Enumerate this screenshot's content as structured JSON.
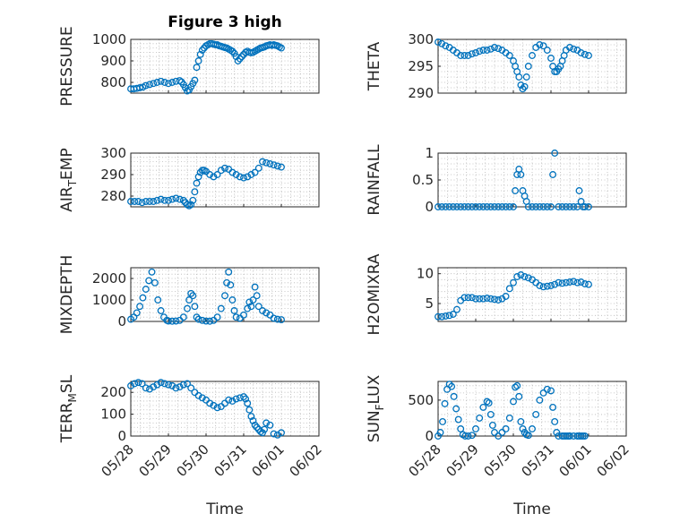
{
  "chart_data": [
    {
      "type": "scatter",
      "title": "Figure 3 high",
      "ylabel": "PRESSURE",
      "ylabel_sub": "",
      "ylabel_tail": "",
      "ylim": [
        750,
        1000
      ],
      "yticks": [
        "800",
        "900",
        "1000"
      ],
      "ytick_values": [
        800,
        900,
        1000
      ],
      "x": [
        0,
        0.08,
        0.16,
        0.24,
        0.32,
        0.4,
        0.5,
        0.6,
        0.7,
        0.8,
        0.9,
        1.0,
        1.1,
        1.2,
        1.3,
        1.35,
        1.4,
        1.45,
        1.5,
        1.55,
        1.6,
        1.65,
        1.7,
        1.75,
        1.8,
        1.85,
        1.9,
        1.95,
        2.0,
        2.05,
        2.1,
        2.15,
        2.2,
        2.25,
        2.3,
        2.35,
        2.4,
        2.45,
        2.5,
        2.55,
        2.6,
        2.65,
        2.7,
        2.75,
        2.8,
        2.85,
        2.9,
        2.95,
        3.0,
        3.05,
        3.1,
        3.15,
        3.2,
        3.25,
        3.3,
        3.35,
        3.4,
        3.45,
        3.5,
        3.55,
        3.6,
        3.65,
        3.7,
        3.75,
        3.8,
        3.85,
        3.9,
        3.95,
        4.0
      ],
      "y": [
        770,
        770,
        772,
        775,
        778,
        785,
        790,
        795,
        800,
        805,
        800,
        795,
        800,
        805,
        808,
        802,
        790,
        775,
        760,
        765,
        780,
        795,
        810,
        870,
        900,
        930,
        950,
        960,
        970,
        975,
        980,
        980,
        978,
        975,
        975,
        970,
        968,
        965,
        962,
        960,
        955,
        950,
        945,
        935,
        920,
        900,
        910,
        920,
        930,
        940,
        945,
        940,
        938,
        940,
        945,
        950,
        955,
        960,
        962,
        965,
        970,
        972,
        975,
        972,
        975,
        972,
        970,
        965,
        960
      ]
    },
    {
      "type": "scatter",
      "title": "",
      "ylabel": "THETA",
      "ylabel_sub": "",
      "ylabel_tail": "",
      "ylim": [
        290,
        300
      ],
      "yticks": [
        "290",
        "295",
        "300"
      ],
      "ytick_values": [
        290,
        295,
        300
      ],
      "x": [
        0,
        0.1,
        0.2,
        0.3,
        0.4,
        0.5,
        0.6,
        0.7,
        0.8,
        0.9,
        1.0,
        1.1,
        1.2,
        1.3,
        1.4,
        1.5,
        1.6,
        1.7,
        1.8,
        1.9,
        2.0,
        2.05,
        2.1,
        2.15,
        2.2,
        2.25,
        2.3,
        2.35,
        2.4,
        2.5,
        2.6,
        2.7,
        2.8,
        2.9,
        3.0,
        3.05,
        3.1,
        3.15,
        3.2,
        3.25,
        3.3,
        3.35,
        3.4,
        3.5,
        3.6,
        3.7,
        3.8,
        3.9,
        4.0
      ],
      "y": [
        299.5,
        299.2,
        298.8,
        298.5,
        298,
        297.5,
        297,
        297,
        297,
        297.3,
        297.5,
        297.8,
        298,
        298,
        298.2,
        298.5,
        298.3,
        298,
        297.5,
        297,
        296,
        295,
        294,
        293,
        291.5,
        290.8,
        291.2,
        293,
        295,
        297,
        298.5,
        299,
        298.8,
        298,
        296.5,
        295,
        294,
        294,
        294.5,
        295,
        296,
        297,
        298,
        298.5,
        298.2,
        298,
        297.5,
        297.2,
        297
      ]
    },
    {
      "type": "scatter",
      "title": "",
      "ylabel": "AIR",
      "ylabel_sub": "T",
      "ylabel_tail": "EMP",
      "ylim": [
        275,
        300
      ],
      "yticks": [
        "280",
        "290",
        "300"
      ],
      "ytick_values": [
        280,
        290,
        300
      ],
      "x": [
        0,
        0.1,
        0.2,
        0.3,
        0.4,
        0.5,
        0.6,
        0.7,
        0.8,
        0.9,
        1.0,
        1.1,
        1.2,
        1.3,
        1.4,
        1.45,
        1.5,
        1.55,
        1.6,
        1.65,
        1.7,
        1.75,
        1.8,
        1.85,
        1.9,
        1.95,
        2.0,
        2.1,
        2.2,
        2.3,
        2.4,
        2.5,
        2.6,
        2.7,
        2.8,
        2.9,
        3.0,
        3.1,
        3.2,
        3.3,
        3.4,
        3.5,
        3.6,
        3.7,
        3.8,
        3.9,
        4.0
      ],
      "y": [
        277.5,
        277.5,
        277.5,
        277,
        277.5,
        277.5,
        277.5,
        278,
        278.5,
        278,
        278,
        278.5,
        279,
        278.5,
        278,
        277,
        276,
        275.5,
        276,
        278,
        282,
        286,
        289,
        291,
        292,
        292,
        291.5,
        290,
        289,
        290,
        292,
        293,
        292.5,
        291,
        290,
        289,
        288.5,
        289,
        290,
        291,
        293,
        296,
        295.5,
        295,
        294.5,
        294,
        293.5
      ]
    },
    {
      "type": "scatter",
      "title": "",
      "ylabel": "RAINFALL",
      "ylabel_sub": "",
      "ylabel_tail": "",
      "ylim": [
        0,
        1
      ],
      "yticks": [
        "0",
        "0.5",
        "1"
      ],
      "ytick_values": [
        0,
        0.5,
        1
      ],
      "x": [
        0,
        0.1,
        0.2,
        0.3,
        0.4,
        0.5,
        0.6,
        0.7,
        0.8,
        0.9,
        1.0,
        1.1,
        1.2,
        1.3,
        1.4,
        1.5,
        1.6,
        1.7,
        1.8,
        1.9,
        2.0,
        2.05,
        2.1,
        2.15,
        2.2,
        2.25,
        2.3,
        2.35,
        2.4,
        2.5,
        2.6,
        2.7,
        2.8,
        2.9,
        3.0,
        3.05,
        3.1,
        3.2,
        3.3,
        3.4,
        3.5,
        3.6,
        3.7,
        3.75,
        3.8,
        3.85,
        3.9,
        4.0
      ],
      "y": [
        0,
        0,
        0,
        0,
        0,
        0,
        0,
        0,
        0,
        0,
        0,
        0,
        0,
        0,
        0,
        0,
        0,
        0,
        0,
        0,
        0,
        0.3,
        0.6,
        0.7,
        0.6,
        0.3,
        0.2,
        0.1,
        0,
        0,
        0,
        0,
        0,
        0,
        0,
        0.6,
        1,
        0,
        0,
        0,
        0,
        0,
        0,
        0.3,
        0.1,
        0,
        0,
        0
      ]
    },
    {
      "type": "scatter",
      "title": "",
      "ylabel": "MIXDEPTH",
      "ylabel_sub": "",
      "ylabel_tail": "",
      "ylim": [
        0,
        2500
      ],
      "yticks": [
        "0",
        "1000",
        "2000"
      ],
      "ytick_values": [
        0,
        1000,
        2000
      ],
      "x": [
        0,
        0.08,
        0.16,
        0.24,
        0.32,
        0.4,
        0.48,
        0.56,
        0.64,
        0.72,
        0.8,
        0.88,
        0.96,
        1.0,
        1.1,
        1.2,
        1.3,
        1.4,
        1.5,
        1.55,
        1.6,
        1.65,
        1.7,
        1.75,
        1.8,
        1.9,
        2.0,
        2.1,
        2.2,
        2.3,
        2.4,
        2.5,
        2.55,
        2.6,
        2.65,
        2.7,
        2.75,
        2.8,
        2.9,
        3.0,
        3.1,
        3.15,
        3.2,
        3.25,
        3.3,
        3.35,
        3.4,
        3.5,
        3.6,
        3.7,
        3.8,
        3.9,
        4.0
      ],
      "y": [
        100,
        200,
        400,
        700,
        1100,
        1500,
        1900,
        2300,
        1800,
        1000,
        500,
        200,
        50,
        20,
        10,
        20,
        50,
        200,
        600,
        1000,
        1300,
        1200,
        700,
        200,
        100,
        50,
        20,
        10,
        50,
        200,
        600,
        1200,
        1800,
        2300,
        1700,
        1000,
        500,
        200,
        150,
        300,
        600,
        900,
        700,
        1000,
        1600,
        1200,
        700,
        500,
        400,
        300,
        150,
        100,
        80
      ]
    },
    {
      "type": "scatter",
      "title": "",
      "ylabel": "H2OMIXRA",
      "ylabel_sub": "",
      "ylabel_tail": "",
      "ylim": [
        2,
        11
      ],
      "yticks": [
        "5",
        "10"
      ],
      "ytick_values": [
        5,
        10
      ],
      "x": [
        0,
        0.1,
        0.2,
        0.3,
        0.4,
        0.5,
        0.6,
        0.7,
        0.8,
        0.9,
        1.0,
        1.1,
        1.2,
        1.3,
        1.4,
        1.5,
        1.6,
        1.7,
        1.8,
        1.9,
        2.0,
        2.1,
        2.2,
        2.3,
        2.4,
        2.5,
        2.6,
        2.7,
        2.8,
        2.9,
        3.0,
        3.1,
        3.2,
        3.3,
        3.4,
        3.5,
        3.6,
        3.7,
        3.8,
        3.9,
        4.0
      ],
      "y": [
        2.8,
        2.8,
        2.9,
        3,
        3.2,
        4,
        5.5,
        6,
        6,
        6,
        5.8,
        5.8,
        5.8,
        5.9,
        5.8,
        5.7,
        5.6,
        5.8,
        6.2,
        7.5,
        8.5,
        9.5,
        9.8,
        9.5,
        9.3,
        9,
        8.5,
        8,
        7.8,
        7.9,
        8,
        8.2,
        8.5,
        8.4,
        8.5,
        8.6,
        8.7,
        8.5,
        8.6,
        8.3,
        8.2
      ]
    },
    {
      "type": "scatter",
      "title": "",
      "ylabel": "TERR",
      "ylabel_sub": "M",
      "ylabel_tail": "SL",
      "ylim": [
        0,
        250
      ],
      "yticks": [
        "0",
        "100",
        "200"
      ],
      "ytick_values": [
        0,
        100,
        200
      ],
      "x": [
        0,
        0.1,
        0.2,
        0.3,
        0.4,
        0.5,
        0.6,
        0.7,
        0.8,
        0.9,
        1.0,
        1.1,
        1.2,
        1.3,
        1.4,
        1.5,
        1.6,
        1.7,
        1.8,
        1.9,
        2.0,
        2.1,
        2.2,
        2.3,
        2.4,
        2.5,
        2.6,
        2.7,
        2.8,
        2.9,
        3.0,
        3.05,
        3.1,
        3.15,
        3.2,
        3.25,
        3.3,
        3.35,
        3.4,
        3.45,
        3.5,
        3.55,
        3.6,
        3.7,
        3.8,
        3.9,
        4.0
      ],
      "y": [
        230,
        240,
        245,
        240,
        220,
        215,
        225,
        235,
        245,
        240,
        235,
        230,
        220,
        225,
        235,
        240,
        220,
        200,
        185,
        175,
        165,
        150,
        140,
        130,
        135,
        150,
        165,
        160,
        170,
        175,
        180,
        170,
        150,
        120,
        90,
        70,
        50,
        40,
        30,
        20,
        15,
        30,
        60,
        50,
        10,
        5,
        15
      ]
    },
    {
      "type": "scatter",
      "title": "",
      "ylabel": "SUN",
      "ylabel_sub": "F",
      "ylabel_tail": "LUX",
      "ylim": [
        0,
        760
      ],
      "yticks": [
        "0",
        "500"
      ],
      "ytick_values": [
        0,
        500
      ],
      "x": [
        0,
        0.06,
        0.12,
        0.18,
        0.24,
        0.3,
        0.36,
        0.42,
        0.48,
        0.54,
        0.6,
        0.66,
        0.72,
        0.8,
        0.9,
        1.0,
        1.1,
        1.2,
        1.3,
        1.35,
        1.4,
        1.45,
        1.5,
        1.6,
        1.7,
        1.8,
        1.9,
        2.0,
        2.05,
        2.1,
        2.15,
        2.2,
        2.25,
        2.3,
        2.35,
        2.4,
        2.5,
        2.6,
        2.7,
        2.8,
        2.9,
        3.0,
        3.05,
        3.1,
        3.15,
        3.2,
        3.3,
        3.35,
        3.4,
        3.45,
        3.5,
        3.6,
        3.7,
        3.75,
        3.8,
        3.85,
        3.9
      ],
      "y": [
        0,
        50,
        200,
        450,
        650,
        720,
        690,
        550,
        380,
        230,
        100,
        20,
        0,
        0,
        10,
        100,
        250,
        400,
        480,
        460,
        300,
        150,
        50,
        0,
        50,
        100,
        250,
        480,
        680,
        700,
        550,
        200,
        100,
        50,
        20,
        10,
        100,
        300,
        500,
        600,
        650,
        630,
        400,
        200,
        50,
        0,
        0,
        0,
        0,
        0,
        0,
        0,
        0,
        0,
        0,
        0,
        0
      ]
    }
  ],
  "x_axis": {
    "ticks": [
      "05/28",
      "05/29",
      "05/30",
      "05/31",
      "06/01",
      "06/02"
    ],
    "label": "Time",
    "xlim": [
      0,
      5
    ]
  },
  "colors": {
    "marker": "#0072bd",
    "axes": "#262626"
  }
}
